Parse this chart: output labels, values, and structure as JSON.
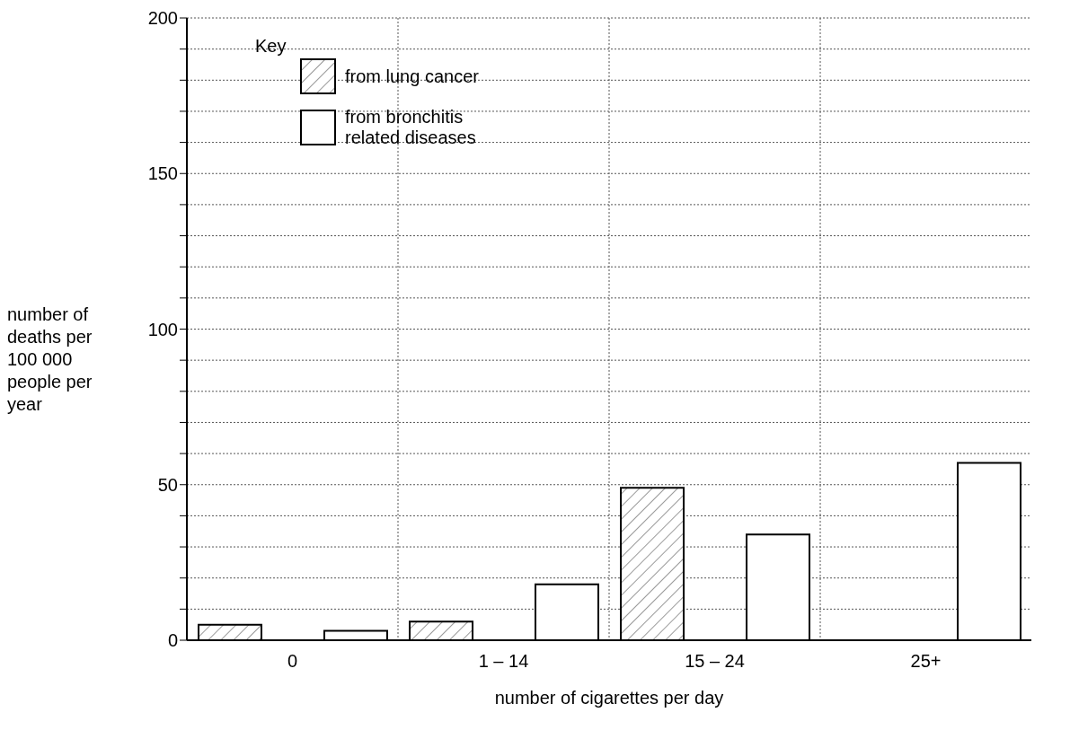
{
  "chart_data": {
    "type": "bar",
    "xlabel": "number of cigarettes per day",
    "ylabel": "number of deaths per 100 000 people per year",
    "legend_title": "Key",
    "categories": [
      "0",
      "1 – 14",
      "15 – 24",
      "25+"
    ],
    "series": [
      {
        "name": "from lung cancer",
        "color": "#000000",
        "values": [
          5,
          6,
          49,
          null
        ]
      },
      {
        "name": "from bronchitis related diseases",
        "color": "#ffffff",
        "values": [
          3,
          18,
          34,
          57
        ]
      }
    ],
    "ylim": [
      0,
      200
    ],
    "yticks": [
      0,
      {
        "value": 10,
        "label": null
      },
      {
        "value": 20,
        "label": null
      },
      {
        "value": 30,
        "label": null
      },
      {
        "value": 40,
        "label": null
      },
      50,
      {
        "value": 60,
        "label": null
      },
      {
        "value": 70,
        "label": null
      },
      {
        "value": 80,
        "label": null
      },
      {
        "value": 90,
        "label": null
      },
      100,
      {
        "value": 110,
        "label": null
      },
      {
        "value": 120,
        "label": null
      },
      {
        "value": 130,
        "label": null
      },
      {
        "value": 140,
        "label": null
      },
      150,
      {
        "value": 160,
        "label": null
      },
      {
        "value": 170,
        "label": null
      },
      {
        "value": 180,
        "label": null
      },
      {
        "value": 190,
        "label": null
      },
      200
    ],
    "grid": true,
    "legend": "top left"
  }
}
